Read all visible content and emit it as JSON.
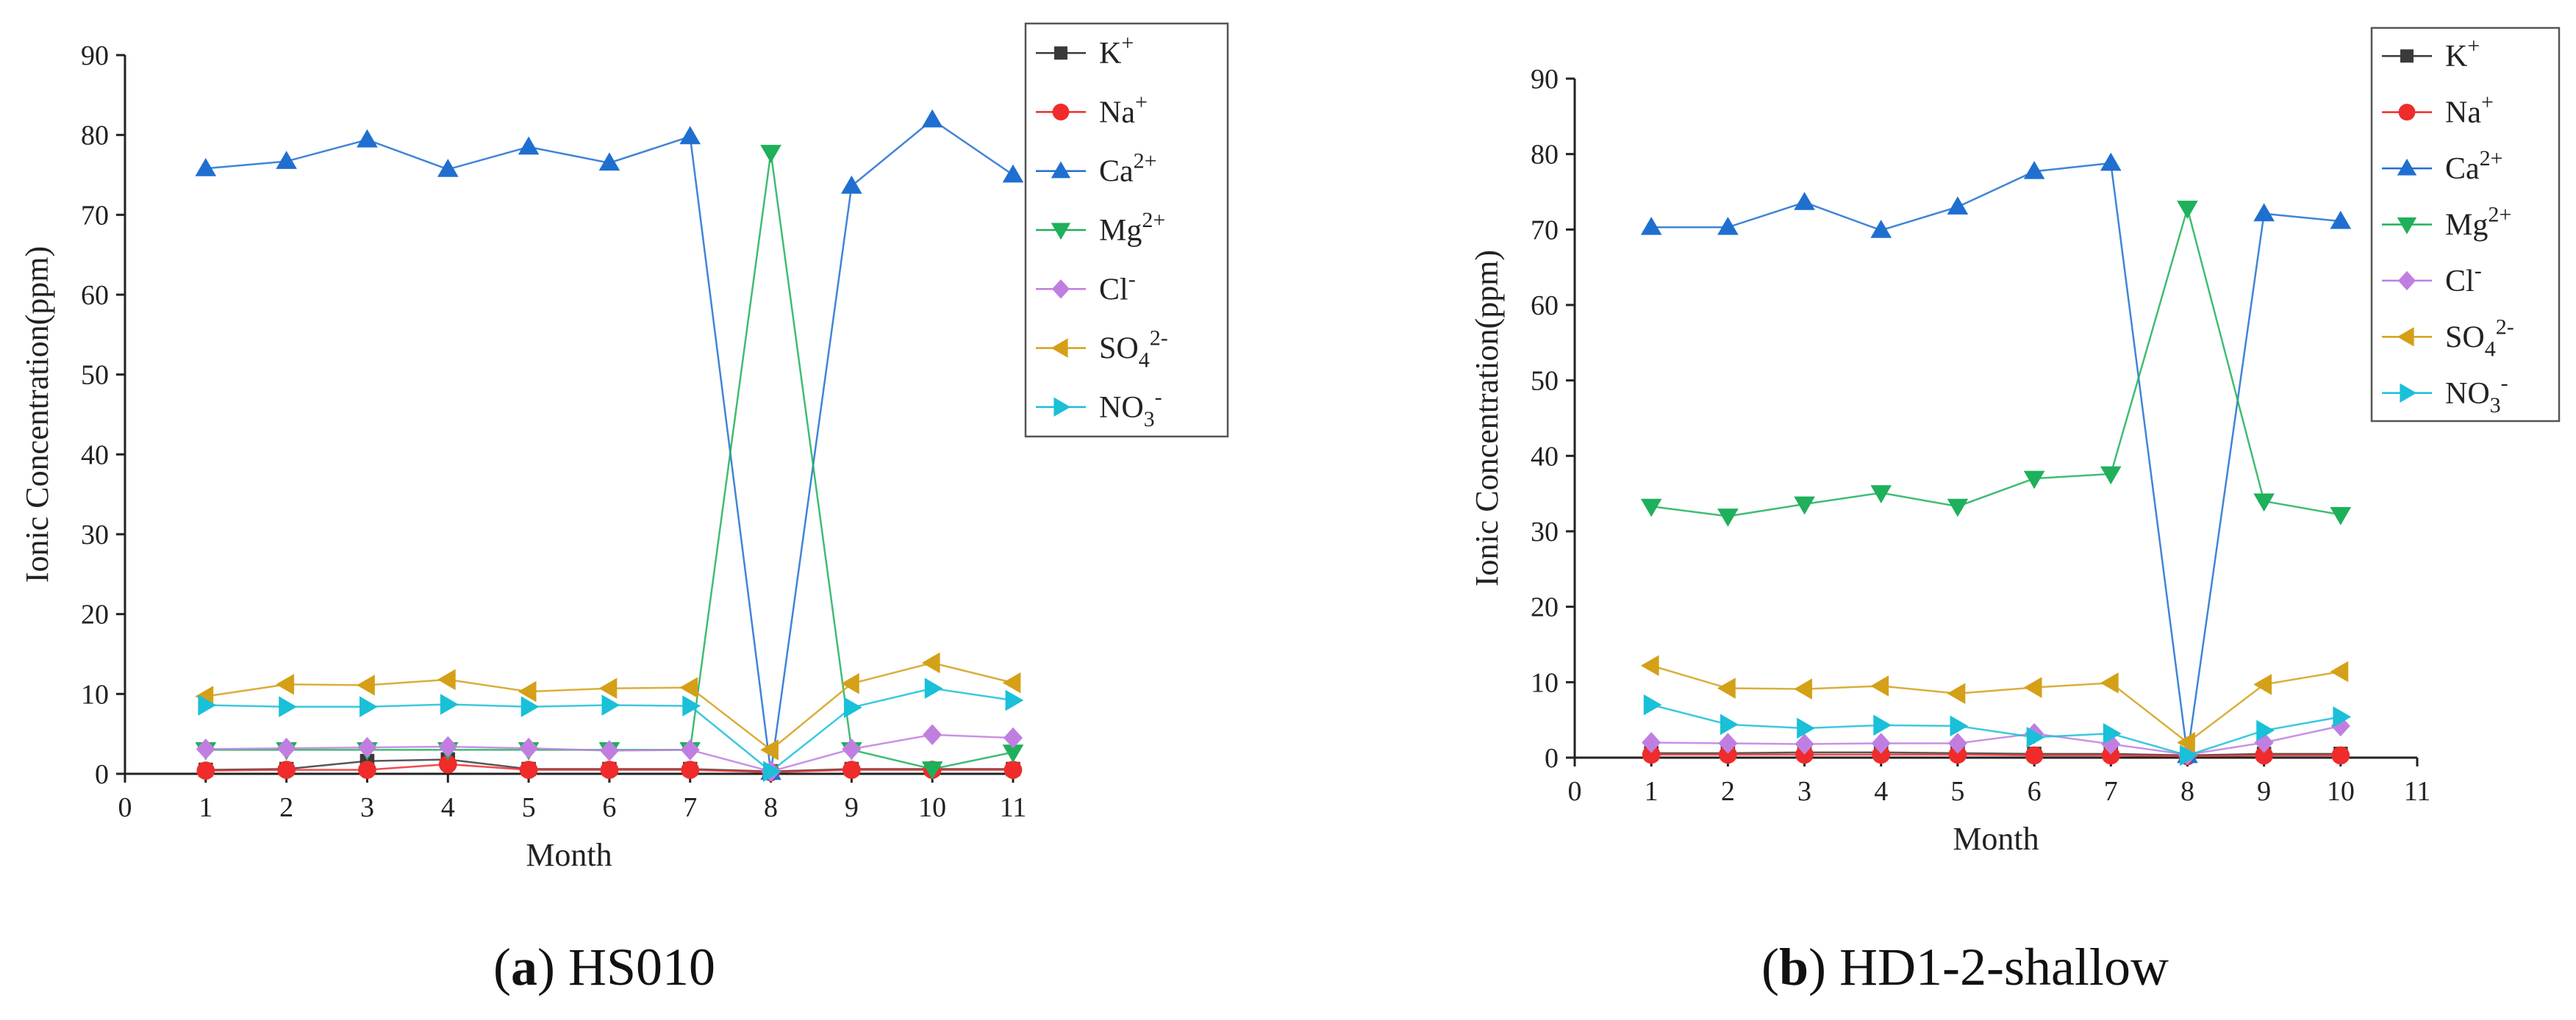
{
  "colors": {
    "K+": "#3a3a3a",
    "Na+": "#ef2b2b",
    "Ca2+": "#1f6fd0",
    "Mg2+": "#1eb05a",
    "Cl-": "#c07fe0",
    "SO42-": "#d4a017",
    "NO3-": "#19c0d8"
  },
  "captions": {
    "a": {
      "letter": "a",
      "text": "HS010"
    },
    "b": {
      "letter": "b",
      "text": "HD1-2-shallow"
    }
  },
  "chart_data": [
    {
      "type": "line",
      "title": "HS010",
      "xlabel": "Month",
      "ylabel": "Ionic Concentration(ppm)",
      "xlim": [
        0,
        11
      ],
      "ylim": [
        0,
        90
      ],
      "xticks": [
        "0",
        "1",
        "2",
        "3",
        "4",
        "5",
        "6",
        "7",
        "8",
        "9",
        "10",
        "11"
      ],
      "yticks": [
        "0",
        "10",
        "20",
        "30",
        "40",
        "50",
        "60",
        "70",
        "80",
        "90"
      ],
      "legend_position": "top-right",
      "x": [
        1,
        2,
        3,
        4,
        5,
        6,
        7,
        8,
        9,
        10,
        11
      ],
      "series": [
        {
          "name": "K+",
          "label": {
            "base": "K",
            "sub": "",
            "sup": "+"
          },
          "marker": "square",
          "values": [
            0.5,
            0.6,
            1.6,
            1.8,
            0.6,
            0.6,
            0.6,
            0.3,
            0.6,
            0.6,
            0.6
          ]
        },
        {
          "name": "Na+",
          "label": {
            "base": "Na",
            "sub": "",
            "sup": "+"
          },
          "marker": "circle",
          "values": [
            0.4,
            0.5,
            0.5,
            1.2,
            0.5,
            0.5,
            0.5,
            0.2,
            0.5,
            0.5,
            0.5
          ]
        },
        {
          "name": "Ca2+",
          "label": {
            "base": "Ca",
            "sub": "",
            "sup": "2+"
          },
          "marker": "tri-up",
          "values": [
            75.8,
            76.7,
            79.4,
            75.7,
            78.5,
            76.5,
            79.8,
            0.2,
            73.6,
            81.9,
            75.0
          ]
        },
        {
          "name": "Mg2+",
          "label": {
            "base": "Mg",
            "sub": "",
            "sup": "2+"
          },
          "marker": "tri-down",
          "values": [
            3.0,
            3.0,
            3.0,
            3.0,
            3.0,
            3.0,
            3.0,
            77.8,
            3.0,
            0.6,
            2.7
          ]
        },
        {
          "name": "Cl-",
          "label": {
            "base": "Cl",
            "sub": "",
            "sup": "-"
          },
          "marker": "diamond",
          "values": [
            3.1,
            3.2,
            3.3,
            3.4,
            3.2,
            2.9,
            3.0,
            0.3,
            3.1,
            4.9,
            4.5
          ]
        },
        {
          "name": "SO42-",
          "label": {
            "base": "SO",
            "sub": "4",
            "sup": "2-"
          },
          "marker": "tri-left",
          "values": [
            9.7,
            11.2,
            11.1,
            11.8,
            10.3,
            10.7,
            10.8,
            3.0,
            11.3,
            13.9,
            11.4
          ]
        },
        {
          "name": "NO3-",
          "label": {
            "base": "NO",
            "sub": "3",
            "sup": "-"
          },
          "marker": "tri-right",
          "values": [
            8.6,
            8.4,
            8.4,
            8.7,
            8.4,
            8.6,
            8.5,
            0.3,
            8.3,
            10.7,
            9.2
          ]
        }
      ]
    },
    {
      "type": "line",
      "title": "HD1-2-shallow",
      "xlabel": "Month",
      "ylabel": "Ionic Concentration(ppm)",
      "xlim": [
        0,
        11
      ],
      "ylim": [
        0,
        90
      ],
      "xticks": [
        "0",
        "1",
        "2",
        "3",
        "4",
        "5",
        "6",
        "7",
        "8",
        "9",
        "10",
        "11"
      ],
      "yticks": [
        "0",
        "10",
        "20",
        "30",
        "40",
        "50",
        "60",
        "70",
        "80",
        "90"
      ],
      "legend_position": "top-right",
      "x": [
        1,
        2,
        3,
        4,
        5,
        6,
        7,
        8,
        9,
        10
      ],
      "series": [
        {
          "name": "K+",
          "label": {
            "base": "K",
            "sub": "",
            "sup": "+"
          },
          "marker": "square",
          "values": [
            0.6,
            0.6,
            0.7,
            0.7,
            0.6,
            0.5,
            0.5,
            0.3,
            0.5,
            0.5
          ]
        },
        {
          "name": "Na+",
          "label": {
            "base": "Na",
            "sub": "",
            "sup": "+"
          },
          "marker": "circle",
          "values": [
            0.4,
            0.4,
            0.4,
            0.4,
            0.4,
            0.3,
            0.3,
            0.2,
            0.3,
            0.3
          ]
        },
        {
          "name": "Ca2+",
          "label": {
            "base": "Ca",
            "sub": "",
            "sup": "2+"
          },
          "marker": "tri-up",
          "values": [
            70.3,
            70.3,
            73.6,
            69.9,
            73.0,
            77.7,
            78.8,
            0.3,
            72.1,
            71.1
          ]
        },
        {
          "name": "Mg2+",
          "label": {
            "base": "Mg",
            "sub": "",
            "sup": "2+"
          },
          "marker": "tri-down",
          "values": [
            33.3,
            32.0,
            33.6,
            35.1,
            33.3,
            37.0,
            37.6,
            72.8,
            34.0,
            32.2
          ]
        },
        {
          "name": "Cl-",
          "label": {
            "base": "Cl",
            "sub": "",
            "sup": "-"
          },
          "marker": "diamond",
          "values": [
            2.0,
            1.9,
            1.8,
            1.9,
            1.9,
            3.2,
            1.8,
            0.4,
            2.0,
            4.2
          ]
        },
        {
          "name": "SO42-",
          "label": {
            "base": "SO",
            "sub": "4",
            "sup": "2-"
          },
          "marker": "tri-left",
          "values": [
            12.2,
            9.2,
            9.1,
            9.5,
            8.5,
            9.3,
            9.9,
            2.0,
            9.7,
            11.4
          ]
        },
        {
          "name": "NO3-",
          "label": {
            "base": "NO",
            "sub": "3",
            "sup": "-"
          },
          "marker": "tri-right",
          "values": [
            7.0,
            4.4,
            3.9,
            4.3,
            4.2,
            2.7,
            3.2,
            0.3,
            3.6,
            5.4
          ]
        }
      ]
    }
  ]
}
